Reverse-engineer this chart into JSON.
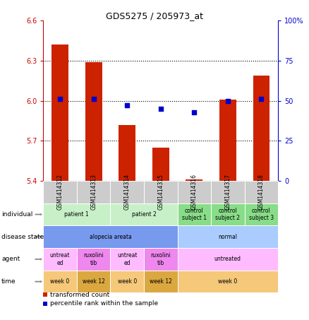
{
  "title": "GDS5275 / 205973_at",
  "samples": [
    "GSM1414312",
    "GSM1414313",
    "GSM1414314",
    "GSM1414315",
    "GSM1414316",
    "GSM1414317",
    "GSM1414318"
  ],
  "red_values": [
    6.42,
    6.29,
    5.82,
    5.65,
    5.41,
    6.01,
    6.19
  ],
  "blue_values": [
    51,
    51,
    47,
    45,
    43,
    50,
    51
  ],
  "ylim_left": [
    5.4,
    6.6
  ],
  "ylim_right": [
    0,
    100
  ],
  "yticks_left": [
    5.4,
    5.7,
    6.0,
    6.3,
    6.6
  ],
  "yticks_right": [
    0,
    25,
    50,
    75,
    100
  ],
  "ytick_labels_right": [
    "0",
    "25",
    "50",
    "75",
    "100%"
  ],
  "hlines": [
    5.7,
    6.0,
    6.3
  ],
  "bar_color": "#cc2200",
  "dot_color": "#0000cc",
  "bar_bottom": 5.4,
  "individual_row": {
    "label": "individual",
    "cells": [
      {
        "text": "patient 1",
        "span": [
          0,
          1
        ],
        "color": "#c8f0c8"
      },
      {
        "text": "patient 2",
        "span": [
          2,
          3
        ],
        "color": "#c8f0c8"
      },
      {
        "text": "control\nsubject 1",
        "span": [
          4,
          4
        ],
        "color": "#88dd88"
      },
      {
        "text": "control\nsubject 2",
        "span": [
          5,
          5
        ],
        "color": "#88dd88"
      },
      {
        "text": "control\nsubject 3",
        "span": [
          6,
          6
        ],
        "color": "#88dd88"
      }
    ]
  },
  "disease_row": {
    "label": "disease state",
    "cells": [
      {
        "text": "alopecia areata",
        "span": [
          0,
          3
        ],
        "color": "#7799ee"
      },
      {
        "text": "normal",
        "span": [
          4,
          6
        ],
        "color": "#aaccff"
      }
    ]
  },
  "agent_row": {
    "label": "agent",
    "cells": [
      {
        "text": "untreat\ned",
        "span": [
          0,
          0
        ],
        "color": "#ffbbff"
      },
      {
        "text": "ruxolini\ntib",
        "span": [
          1,
          1
        ],
        "color": "#ee88ee"
      },
      {
        "text": "untreat\ned",
        "span": [
          2,
          2
        ],
        "color": "#ffbbff"
      },
      {
        "text": "ruxolini\ntib",
        "span": [
          3,
          3
        ],
        "color": "#ee88ee"
      },
      {
        "text": "untreated",
        "span": [
          4,
          6
        ],
        "color": "#ffbbff"
      }
    ]
  },
  "time_row": {
    "label": "time",
    "cells": [
      {
        "text": "week 0",
        "span": [
          0,
          0
        ],
        "color": "#f5c87a"
      },
      {
        "text": "week 12",
        "span": [
          1,
          1
        ],
        "color": "#dba840"
      },
      {
        "text": "week 0",
        "span": [
          2,
          2
        ],
        "color": "#f5c87a"
      },
      {
        "text": "week 12",
        "span": [
          3,
          3
        ],
        "color": "#dba840"
      },
      {
        "text": "week 0",
        "span": [
          4,
          6
        ],
        "color": "#f5c87a"
      }
    ]
  },
  "legend_red": "transformed count",
  "legend_blue": "percentile rank within the sample",
  "bg_color": "#ffffff",
  "axis_left_color": "#cc0000",
  "axis_right_color": "#0000cc",
  "sample_box_color": "#cccccc"
}
